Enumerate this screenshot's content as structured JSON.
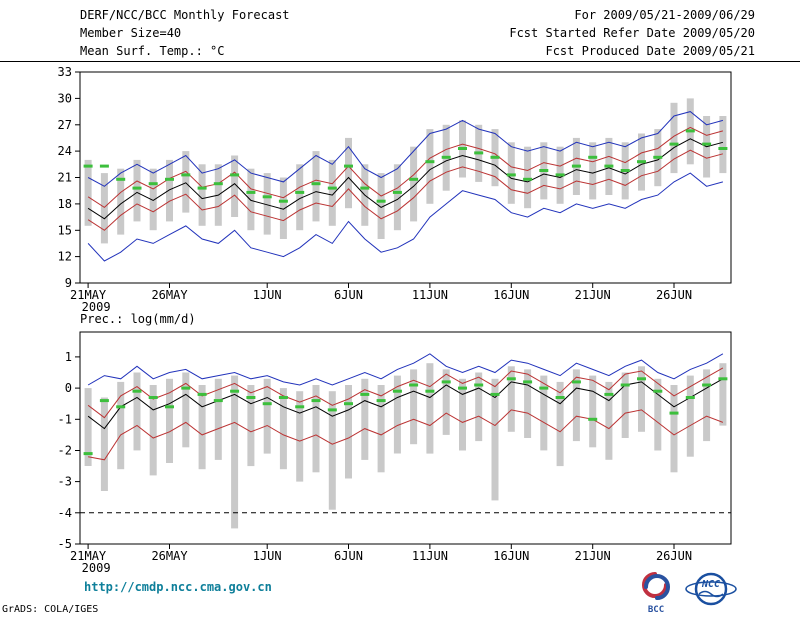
{
  "header": {
    "title": "DERF/NCC/BCC Monthly Forecast",
    "member_size": "Member Size=40",
    "for_range": "For 2009/05/21-2009/06/29",
    "refer_date": "Fcst Started Refer Date 2009/05/20",
    "produced_date": "Fcst Produced Date 2009/05/21"
  },
  "footer": {
    "url": "http://cmdp.ncc.cma.gov.cn",
    "grads_credit": "GrADS: COLA/IGES",
    "bcc_label": "BCC",
    "ncc_label": "NCC"
  },
  "colors": {
    "url_text": "#0e7f9a",
    "frame": "#000000",
    "bar": "#c9c9c9",
    "ensemble_envelope": "#2233bb",
    "std_band": "#bb3333",
    "ensemble_mean": "#000000",
    "obs_dash": "#3cbf3c",
    "bcc_red": "#c03040",
    "bcc_blue": "#2a52a0",
    "ncc_blue": "#1a4fa0"
  },
  "chart_data": [
    {
      "type": "line",
      "name": "temperature",
      "title": "Mean Surf. Temp.: °C",
      "xlabel": "",
      "ylabel": "",
      "ylim": [
        9,
        33
      ],
      "yticks": [
        33,
        30,
        27,
        24,
        21,
        18,
        15,
        12,
        9
      ],
      "n_days": 40,
      "x_tick_days": [
        0,
        5,
        11,
        16,
        21,
        26,
        31,
        36
      ],
      "x_tick_labels": [
        "21MAY",
        "26MAY",
        "1JUN",
        "6JUN",
        "11JUN",
        "16JUN",
        "21JUN",
        "26JUN"
      ],
      "x_year_label": "2009",
      "refline": null,
      "bars": {
        "name": "ensemble-spread",
        "low": [
          15.5,
          13.5,
          14.5,
          16.0,
          15.0,
          16.0,
          17.0,
          15.5,
          15.5,
          16.5,
          15.0,
          14.5,
          14.0,
          15.0,
          16.0,
          15.5,
          17.5,
          15.5,
          14.0,
          15.0,
          16.0,
          18.0,
          19.5,
          21.0,
          20.5,
          20.0,
          18.0,
          17.5,
          18.5,
          18.0,
          19.0,
          18.5,
          19.0,
          18.5,
          19.5,
          20.0,
          21.5,
          22.5,
          21.0,
          21.5
        ],
        "high": [
          23.0,
          21.5,
          22.0,
          23.0,
          22.0,
          23.0,
          24.0,
          22.5,
          22.5,
          23.5,
          22.0,
          21.5,
          21.0,
          22.5,
          24.0,
          23.0,
          25.5,
          22.5,
          21.5,
          22.5,
          24.5,
          26.5,
          27.0,
          27.5,
          27.0,
          26.5,
          25.0,
          24.5,
          25.0,
          24.5,
          25.5,
          25.0,
          25.5,
          25.0,
          26.0,
          26.5,
          29.5,
          30.0,
          28.0,
          28.0
        ]
      },
      "series": [
        {
          "name": "ensemble-max",
          "color": "#2233bb",
          "values": [
            21.0,
            20.0,
            21.5,
            22.5,
            21.5,
            22.5,
            23.5,
            21.5,
            22.0,
            23.0,
            21.5,
            21.0,
            20.5,
            22.0,
            23.5,
            22.5,
            24.5,
            22.0,
            21.0,
            22.0,
            24.0,
            26.0,
            26.5,
            27.5,
            26.5,
            26.0,
            24.5,
            24.0,
            24.5,
            24.0,
            25.0,
            24.5,
            25.0,
            24.5,
            25.5,
            26.0,
            28.0,
            28.5,
            27.0,
            27.5
          ]
        },
        {
          "name": "mean-plus-std",
          "color": "#bb3333",
          "values": [
            18.8,
            17.6,
            19.3,
            20.6,
            19.7,
            20.9,
            21.7,
            19.9,
            20.3,
            21.6,
            19.7,
            19.2,
            18.7,
            19.9,
            20.7,
            20.3,
            22.3,
            20.3,
            18.9,
            19.8,
            21.3,
            23.2,
            24.2,
            24.8,
            24.3,
            23.7,
            22.2,
            21.8,
            22.7,
            22.3,
            23.2,
            22.8,
            23.4,
            22.7,
            23.8,
            24.3,
            25.7,
            26.7,
            25.8,
            26.3
          ]
        },
        {
          "name": "ensemble-mean",
          "color": "#000000",
          "values": [
            17.5,
            16.3,
            18.0,
            19.3,
            18.4,
            19.6,
            20.4,
            18.6,
            19.0,
            20.3,
            18.4,
            17.9,
            17.4,
            18.6,
            19.4,
            19.0,
            21.0,
            19.0,
            17.6,
            18.5,
            20.0,
            21.9,
            22.9,
            23.5,
            23.0,
            22.4,
            20.9,
            20.5,
            21.4,
            21.0,
            21.9,
            21.5,
            22.1,
            21.4,
            22.5,
            23.0,
            24.4,
            25.4,
            24.5,
            25.0
          ]
        },
        {
          "name": "mean-minus-std",
          "color": "#bb3333",
          "values": [
            16.2,
            15.0,
            16.7,
            18.0,
            17.1,
            18.3,
            19.1,
            17.3,
            17.7,
            19.0,
            17.1,
            16.6,
            16.1,
            17.3,
            18.1,
            17.7,
            19.7,
            17.7,
            16.3,
            17.2,
            18.7,
            20.6,
            21.6,
            22.2,
            21.7,
            21.1,
            19.6,
            19.2,
            20.1,
            19.7,
            20.6,
            20.2,
            20.8,
            20.1,
            21.2,
            21.7,
            23.1,
            24.1,
            23.2,
            23.7
          ]
        },
        {
          "name": "ensemble-min",
          "color": "#2233bb",
          "values": [
            13.5,
            11.5,
            12.5,
            14.0,
            13.5,
            14.5,
            15.5,
            14.0,
            13.5,
            15.0,
            13.0,
            12.5,
            12.0,
            13.0,
            14.5,
            13.5,
            16.0,
            14.0,
            12.5,
            13.0,
            14.0,
            16.5,
            18.0,
            19.5,
            19.0,
            18.5,
            17.0,
            16.5,
            17.5,
            17.0,
            18.0,
            17.5,
            18.0,
            17.5,
            18.5,
            19.0,
            20.5,
            21.5,
            20.0,
            20.5
          ]
        }
      ],
      "dashes": {
        "name": "observation",
        "color": "#3cbf3c",
        "values": [
          22.3,
          22.3,
          20.8,
          19.8,
          20.3,
          20.8,
          21.3,
          19.8,
          20.3,
          21.3,
          19.3,
          18.8,
          18.3,
          19.3,
          20.3,
          19.8,
          22.3,
          19.8,
          18.3,
          19.3,
          20.8,
          22.8,
          23.3,
          24.3,
          23.8,
          23.3,
          21.3,
          20.8,
          21.8,
          21.3,
          22.3,
          23.3,
          22.3,
          21.8,
          22.8,
          23.3,
          24.8,
          26.3,
          24.8,
          24.3
        ]
      }
    },
    {
      "type": "line",
      "name": "precipitation",
      "title": "Prec.: log(mm/d)",
      "xlabel": "",
      "ylabel": "",
      "ylim": [
        -5,
        1.8
      ],
      "yticks": [
        1,
        0,
        -1,
        -2,
        -3,
        -4,
        -5
      ],
      "n_days": 40,
      "x_tick_days": [
        0,
        5,
        11,
        16,
        21,
        26,
        31,
        36
      ],
      "x_tick_labels": [
        "21MAY",
        "26MAY",
        "1JUN",
        "6JUN",
        "11JUN",
        "16JUN",
        "21JUN",
        "26JUN"
      ],
      "x_year_label": "2009",
      "refline": -4,
      "bars": {
        "name": "ensemble-spread",
        "low": [
          -2.5,
          -3.3,
          -2.6,
          -2.0,
          -2.8,
          -2.4,
          -1.9,
          -2.6,
          -2.3,
          -4.5,
          -2.5,
          -2.1,
          -2.6,
          -3.0,
          -2.7,
          -3.9,
          -2.9,
          -2.3,
          -2.7,
          -2.1,
          -1.8,
          -2.1,
          -1.5,
          -2.0,
          -1.7,
          -3.6,
          -1.4,
          -1.6,
          -2.0,
          -2.5,
          -1.7,
          -1.9,
          -2.3,
          -1.6,
          -1.4,
          -2.0,
          -2.7,
          -2.2,
          -1.7,
          -1.2
        ],
        "high": [
          0.0,
          -0.3,
          0.2,
          0.5,
          0.1,
          0.3,
          0.5,
          0.1,
          0.3,
          0.4,
          0.1,
          0.3,
          0.0,
          -0.1,
          0.1,
          -0.1,
          0.1,
          0.3,
          0.1,
          0.4,
          0.6,
          0.8,
          0.6,
          0.3,
          0.5,
          0.3,
          0.7,
          0.6,
          0.4,
          0.2,
          0.6,
          0.4,
          0.2,
          0.5,
          0.7,
          0.3,
          0.1,
          0.4,
          0.6,
          0.8
        ]
      },
      "series": [
        {
          "name": "ensemble-max",
          "color": "#2233bb",
          "values": [
            0.1,
            0.4,
            0.3,
            0.7,
            0.3,
            0.5,
            0.6,
            0.3,
            0.4,
            0.5,
            0.3,
            0.4,
            0.2,
            0.1,
            0.3,
            0.1,
            0.3,
            0.5,
            0.3,
            0.6,
            0.8,
            1.1,
            0.7,
            0.5,
            0.7,
            0.5,
            0.9,
            0.8,
            0.6,
            0.4,
            0.8,
            0.6,
            0.4,
            0.7,
            0.9,
            0.5,
            0.3,
            0.6,
            0.8,
            1.1
          ]
        },
        {
          "name": "mean-plus-std",
          "color": "#bb3333",
          "values": [
            -0.55,
            -0.95,
            -0.25,
            0.05,
            -0.35,
            -0.15,
            0.15,
            -0.25,
            -0.05,
            0.15,
            -0.15,
            0.05,
            -0.25,
            -0.45,
            -0.25,
            -0.55,
            -0.35,
            -0.05,
            -0.25,
            0.05,
            0.25,
            0.05,
            0.45,
            0.15,
            0.35,
            0.05,
            0.55,
            0.45,
            0.15,
            -0.15,
            0.35,
            0.25,
            -0.05,
            0.45,
            0.55,
            0.15,
            -0.25,
            0.05,
            0.35,
            0.65
          ]
        },
        {
          "name": "ensemble-mean",
          "color": "#000000",
          "values": [
            -0.9,
            -1.3,
            -0.6,
            -0.3,
            -0.7,
            -0.5,
            -0.2,
            -0.6,
            -0.4,
            -0.2,
            -0.5,
            -0.3,
            -0.6,
            -0.8,
            -0.6,
            -0.9,
            -0.7,
            -0.4,
            -0.6,
            -0.3,
            -0.1,
            -0.3,
            0.1,
            -0.2,
            0.0,
            -0.3,
            0.2,
            0.1,
            -0.2,
            -0.5,
            0.0,
            -0.1,
            -0.4,
            0.1,
            0.2,
            -0.2,
            -0.6,
            -0.3,
            0.0,
            0.3
          ]
        },
        {
          "name": "mean-minus-std",
          "color": "#bb3333",
          "values": [
            -2.2,
            -2.3,
            -1.5,
            -1.2,
            -1.6,
            -1.4,
            -1.1,
            -1.5,
            -1.3,
            -1.1,
            -1.4,
            -1.2,
            -1.5,
            -1.7,
            -1.5,
            -1.8,
            -1.6,
            -1.3,
            -1.5,
            -1.2,
            -1.0,
            -1.2,
            -0.8,
            -1.1,
            -0.9,
            -1.2,
            -0.7,
            -0.8,
            -1.1,
            -1.4,
            -0.9,
            -1.0,
            -1.3,
            -0.8,
            -0.7,
            -1.1,
            -1.5,
            -1.2,
            -0.9,
            -1.1
          ]
        }
      ],
      "dashes": {
        "name": "observation",
        "color": "#3cbf3c",
        "values": [
          -2.1,
          -0.4,
          -0.6,
          -0.1,
          -0.3,
          -0.6,
          0.0,
          -0.2,
          -0.4,
          -0.1,
          -0.3,
          -0.5,
          -0.3,
          -0.6,
          -0.4,
          -0.7,
          -0.5,
          -0.2,
          -0.4,
          -0.1,
          0.1,
          -0.1,
          0.2,
          0.0,
          0.1,
          -0.2,
          0.3,
          0.2,
          0.0,
          -0.3,
          0.2,
          -1.0,
          -0.2,
          0.1,
          0.3,
          -0.1,
          -0.8,
          -0.3,
          0.1,
          0.3
        ]
      }
    }
  ]
}
